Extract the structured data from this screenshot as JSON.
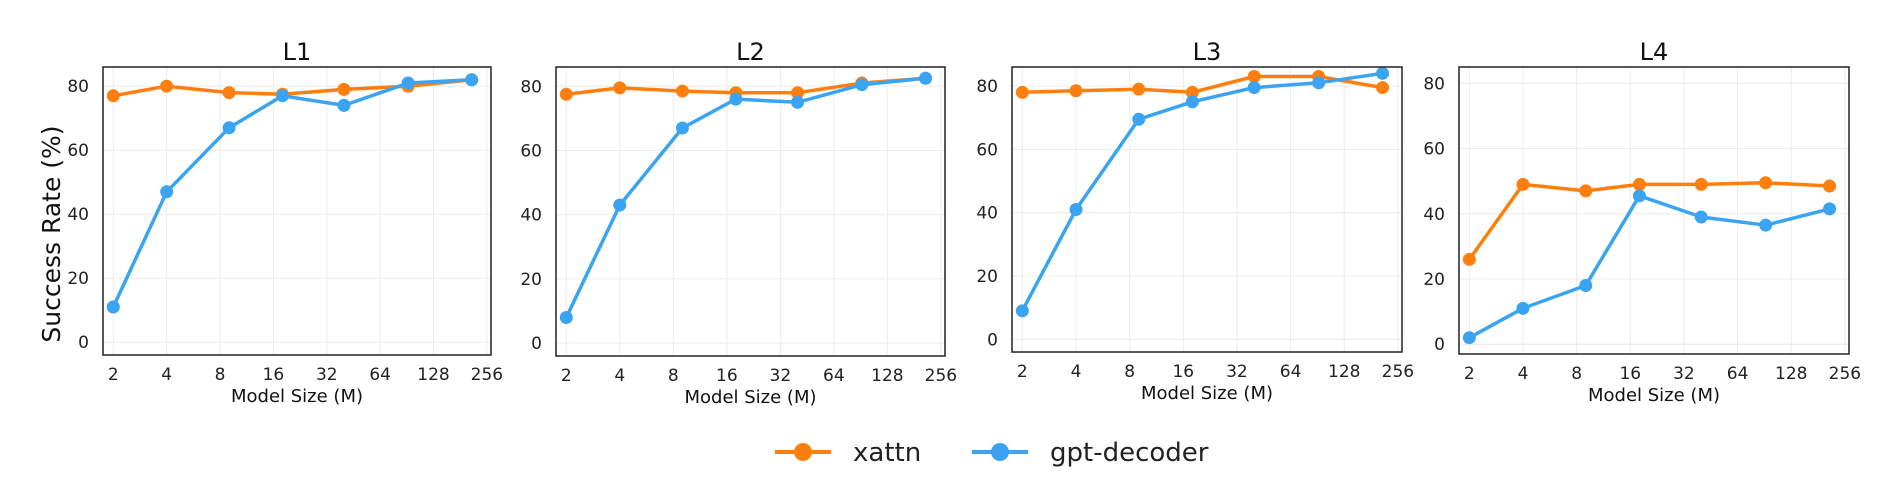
{
  "figure": {
    "shared_ylabel": "Success Rate (%)",
    "legend": [
      {
        "name": "xattn",
        "color": "#ff7f0e"
      },
      {
        "name": "gpt-decoder",
        "color": "#3ba4f2"
      }
    ]
  },
  "chart_data": [
    {
      "type": "line",
      "title": "L1",
      "xlabel": "Model Size (M)",
      "ylabel": "Success Rate (%)",
      "xscale": "log2",
      "xticks": [
        2,
        4,
        8,
        16,
        32,
        64,
        128,
        256
      ],
      "yticks": [
        0,
        20,
        40,
        60,
        80
      ],
      "xlim": [
        1.75,
        270
      ],
      "ylim": [
        -4,
        86
      ],
      "grid": true,
      "series": [
        {
          "name": "xattn",
          "color": "#ff7f0e",
          "x": [
            2,
            4,
            9,
            18,
            40,
            92,
            210
          ],
          "y": [
            77,
            80,
            78,
            77.5,
            79,
            80,
            82
          ]
        },
        {
          "name": "gpt-decoder",
          "color": "#3ba4f2",
          "x": [
            2,
            4,
            9,
            18,
            40,
            92,
            210
          ],
          "y": [
            11,
            47,
            67,
            77,
            74,
            81,
            82
          ]
        }
      ]
    },
    {
      "type": "line",
      "title": "L2",
      "xlabel": "Model Size (M)",
      "ylabel": "",
      "xscale": "log2",
      "xticks": [
        2,
        4,
        8,
        16,
        32,
        64,
        128,
        256
      ],
      "yticks": [
        0,
        20,
        40,
        60,
        80
      ],
      "xlim": [
        1.75,
        270
      ],
      "ylim": [
        -4,
        86
      ],
      "grid": true,
      "series": [
        {
          "name": "xattn",
          "color": "#ff7f0e",
          "x": [
            2,
            4,
            9,
            18,
            40,
            92,
            210
          ],
          "y": [
            77.5,
            79.5,
            78.5,
            78,
            78,
            81,
            82.5
          ]
        },
        {
          "name": "gpt-decoder",
          "color": "#3ba4f2",
          "x": [
            2,
            4,
            9,
            18,
            40,
            92,
            210
          ],
          "y": [
            8,
            43,
            67,
            76,
            75,
            80.5,
            82.5
          ]
        }
      ]
    },
    {
      "type": "line",
      "title": "L3",
      "xlabel": "Model Size (M)",
      "ylabel": "",
      "xscale": "log2",
      "xticks": [
        2,
        4,
        8,
        16,
        32,
        64,
        128,
        256
      ],
      "yticks": [
        0,
        20,
        40,
        60,
        80
      ],
      "xlim": [
        1.75,
        270
      ],
      "ylim": [
        -4,
        86
      ],
      "grid": true,
      "series": [
        {
          "name": "xattn",
          "color": "#ff7f0e",
          "x": [
            2,
            4,
            9,
            18,
            40,
            92,
            210
          ],
          "y": [
            78,
            78.5,
            79,
            78,
            83,
            83,
            79.5
          ]
        },
        {
          "name": "gpt-decoder",
          "color": "#3ba4f2",
          "x": [
            2,
            4,
            9,
            18,
            40,
            92,
            210
          ],
          "y": [
            9,
            41,
            69.5,
            75,
            79.5,
            81,
            84
          ]
        }
      ]
    },
    {
      "type": "line",
      "title": "L4",
      "xlabel": "Model Size (M)",
      "ylabel": "",
      "xscale": "log2",
      "xticks": [
        2,
        4,
        8,
        16,
        32,
        64,
        128,
        256
      ],
      "yticks": [
        0,
        20,
        40,
        60,
        80
      ],
      "xlim": [
        1.75,
        270
      ],
      "ylim": [
        -3,
        85
      ],
      "grid": true,
      "series": [
        {
          "name": "xattn",
          "color": "#ff7f0e",
          "x": [
            2,
            4,
            9,
            18,
            40,
            92,
            210
          ],
          "y": [
            26,
            49,
            47,
            49,
            49,
            49.5,
            48.5
          ]
        },
        {
          "name": "gpt-decoder",
          "color": "#3ba4f2",
          "x": [
            2,
            4,
            9,
            18,
            40,
            92,
            210
          ],
          "y": [
            2,
            11,
            18,
            45.5,
            39,
            36.5,
            41.5
          ]
        }
      ]
    }
  ]
}
